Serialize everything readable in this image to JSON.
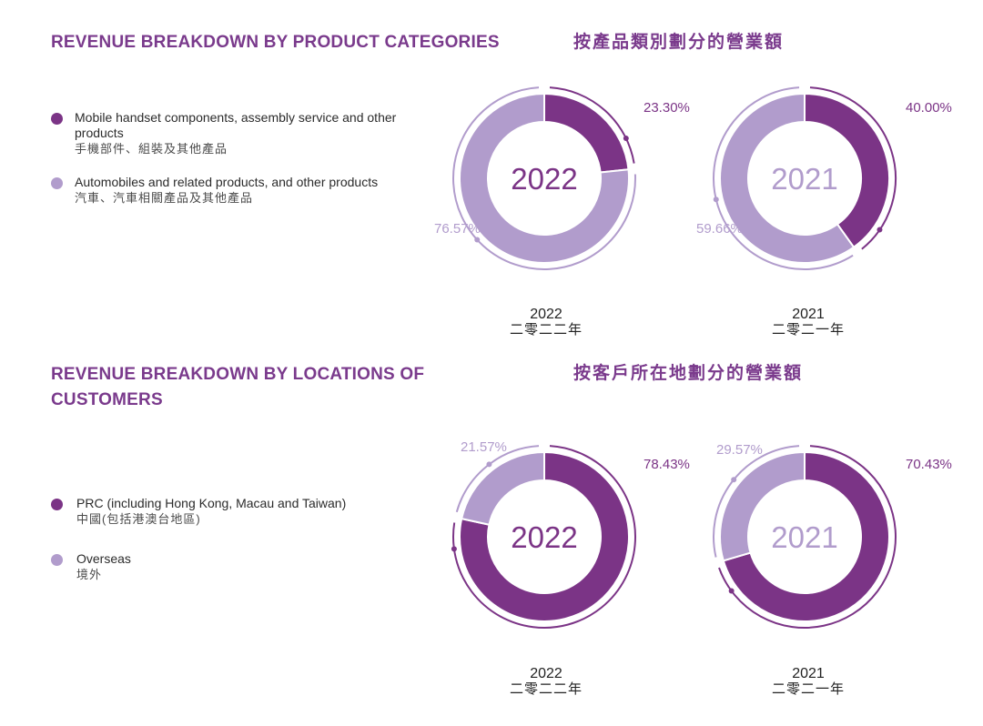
{
  "section_product": {
    "title": "REVENUE BREAKDOWN BY PRODUCT CATEGORIES",
    "title_zh": "按產品類別劃分的營業額",
    "legend": [
      {
        "label": "Mobile handset components, assembly service and other products",
        "label_zh": "手機部件、組裝及其他產品",
        "color": "#7b3486"
      },
      {
        "label": "Automobiles and related products, and other products",
        "label_zh": "汽車、汽車相關產品及其他產品",
        "color": "#b19ccc"
      }
    ]
  },
  "section_location": {
    "title": "REVENUE BREAKDOWN BY LOCATIONS OF CUSTOMERS",
    "title_zh": "按客戶所在地劃分的營業額",
    "legend": [
      {
        "label": "PRC (including Hong Kong, Macau and Taiwan)",
        "label_zh": "中國(包括港澳台地區)",
        "color": "#7b3486"
      },
      {
        "label": "Overseas",
        "label_zh": "境外",
        "color": "#b19ccc"
      }
    ]
  },
  "year_labels": {
    "y2022": "2022",
    "y2022_zh": "二零二二年",
    "y2021": "2021",
    "y2021_zh": "二零二一年"
  },
  "chart_data": [
    {
      "type": "pie",
      "title": "2022",
      "categories": [
        "Mobile handset components, assembly service and other products",
        "Automobiles and related products, and other products"
      ],
      "values": [
        23.3,
        76.57
      ],
      "labels": [
        "23.30%",
        "76.57%"
      ],
      "colors": [
        "#7b3486",
        "#b19ccc"
      ]
    },
    {
      "type": "pie",
      "title": "2021",
      "categories": [
        "Mobile handset components, assembly service and other products",
        "Automobiles and related products, and other products"
      ],
      "values": [
        40.0,
        59.66
      ],
      "labels": [
        "40.00%",
        "59.66%"
      ],
      "colors": [
        "#7b3486",
        "#b19ccc"
      ]
    },
    {
      "type": "pie",
      "title": "2022",
      "categories": [
        "PRC (including Hong Kong, Macau and Taiwan)",
        "Overseas"
      ],
      "values": [
        78.43,
        21.57
      ],
      "labels": [
        "78.43%",
        "21.57%"
      ],
      "colors": [
        "#7b3486",
        "#b19ccc"
      ]
    },
    {
      "type": "pie",
      "title": "2021",
      "categories": [
        "PRC (including Hong Kong, Macau and Taiwan)",
        "Overseas"
      ],
      "values": [
        70.43,
        29.57
      ],
      "labels": [
        "70.43%",
        "29.57%"
      ],
      "colors": [
        "#7b3486",
        "#b19ccc"
      ]
    }
  ]
}
